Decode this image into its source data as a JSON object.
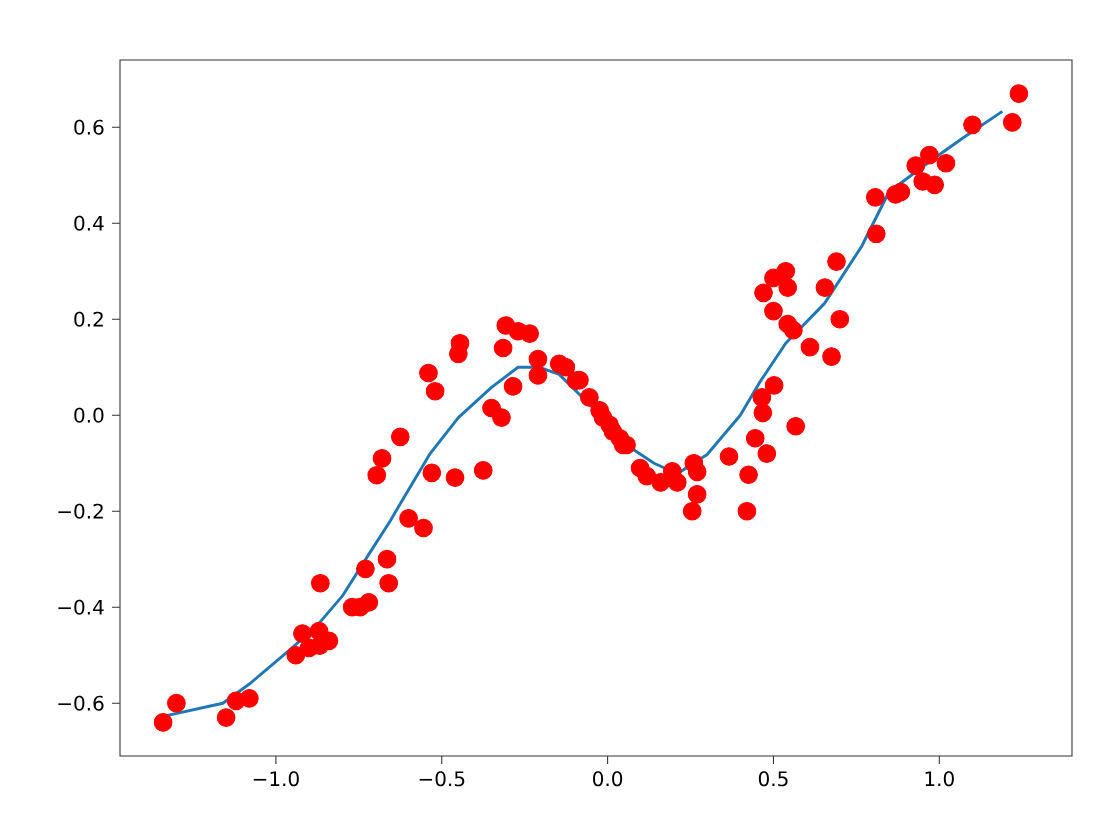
{
  "chart_data": {
    "type": "scatter",
    "marker": "circle",
    "xlim": [
      -1.47,
      1.4
    ],
    "ylim": [
      -0.71,
      0.74
    ],
    "xticks": [
      {
        "value": -1.0,
        "label": "−1.0"
      },
      {
        "value": -0.5,
        "label": "−0.5"
      },
      {
        "value": 0.0,
        "label": "0.0"
      },
      {
        "value": 0.5,
        "label": "0.5"
      },
      {
        "value": 1.0,
        "label": "1.0"
      }
    ],
    "yticks": [
      {
        "value": -0.6,
        "label": "−0.6"
      },
      {
        "value": -0.4,
        "label": "−0.4"
      },
      {
        "value": -0.2,
        "label": "−0.2"
      },
      {
        "value": 0.0,
        "label": "0.0"
      },
      {
        "value": 0.2,
        "label": "0.2"
      },
      {
        "value": 0.4,
        "label": "0.4"
      },
      {
        "value": 0.6,
        "label": "0.6"
      }
    ],
    "series": [
      {
        "color": "#ff0000",
        "x": [
          -1.34,
          -1.3,
          -1.15,
          -1.12,
          -1.08,
          -0.94,
          -0.92,
          -0.9,
          -0.87,
          -0.868,
          -0.84,
          -0.866,
          -0.77,
          -0.746,
          -0.72,
          -0.73,
          -0.665,
          -0.66,
          -0.6,
          -0.555,
          -0.696,
          -0.68,
          -0.625,
          -0.54,
          -0.52,
          -0.53,
          -0.46,
          -0.45,
          -0.445,
          -0.375,
          -0.35,
          -0.32,
          -0.315,
          -0.307,
          -0.27,
          -0.235,
          -0.285,
          -0.21,
          -0.21,
          -0.146,
          -0.126,
          -0.095,
          -0.085,
          -0.055,
          -0.024,
          -0.014,
          0.006,
          0.016,
          0.037,
          0.047,
          0.057,
          0.098,
          0.118,
          0.16,
          0.195,
          0.21,
          0.26,
          0.27,
          0.27,
          0.255,
          0.366,
          0.425,
          0.42,
          0.445,
          0.48,
          0.468,
          0.465,
          0.502,
          0.567,
          0.5,
          0.543,
          0.56,
          0.61,
          0.675,
          0.7,
          0.655,
          0.69,
          0.47,
          0.5,
          0.537,
          0.543,
          0.81,
          0.807,
          0.868,
          0.884,
          0.929,
          0.97,
          0.95,
          0.986,
          1.02,
          1.1,
          1.22,
          1.24
        ],
        "values": [
          -0.64,
          -0.6,
          -0.63,
          -0.595,
          -0.59,
          -0.5,
          -0.455,
          -0.485,
          -0.45,
          -0.48,
          -0.47,
          -0.35,
          -0.4,
          -0.4,
          -0.39,
          -0.32,
          -0.3,
          -0.35,
          -0.215,
          -0.235,
          -0.125,
          -0.09,
          -0.045,
          0.088,
          0.05,
          -0.12,
          -0.13,
          0.128,
          0.15,
          -0.115,
          0.015,
          -0.005,
          0.14,
          0.187,
          0.175,
          0.17,
          0.06,
          0.117,
          0.083,
          0.107,
          0.1,
          0.072,
          0.073,
          0.037,
          0.01,
          -0.005,
          -0.02,
          -0.034,
          -0.048,
          -0.062,
          -0.062,
          -0.11,
          -0.127,
          -0.14,
          -0.117,
          -0.14,
          -0.1,
          -0.118,
          -0.165,
          -0.2,
          -0.086,
          -0.124,
          -0.2,
          -0.048,
          -0.08,
          0.005,
          0.037,
          0.062,
          -0.023,
          0.217,
          0.19,
          0.177,
          0.142,
          0.122,
          0.2,
          0.266,
          0.32,
          0.255,
          0.286,
          0.3,
          0.266,
          0.378,
          0.454,
          0.46,
          0.465,
          0.52,
          0.542,
          0.487,
          0.48,
          0.525,
          0.605,
          0.61,
          0.67
        ]
      },
      {
        "type": "line",
        "marker": "none",
        "color": "#1f77b4",
        "x": [
          -1.357,
          -1.16,
          -1.08,
          -0.96,
          -0.878,
          -0.8,
          -0.72,
          -0.655,
          -0.634,
          -0.535,
          -0.45,
          -0.35,
          -0.27,
          -0.207,
          -0.146,
          -0.045,
          0.057,
          0.14,
          0.21,
          0.3,
          0.4,
          0.46,
          0.537,
          0.654,
          0.766,
          0.848,
          0.97,
          1.07,
          1.19
        ],
        "values": [
          -0.63,
          -0.6,
          -0.56,
          -0.49,
          -0.44,
          -0.377,
          -0.29,
          -0.22,
          -0.195,
          -0.08,
          -0.005,
          0.058,
          0.1,
          0.1,
          0.085,
          0.016,
          -0.062,
          -0.1,
          -0.122,
          -0.082,
          0.0,
          0.07,
          0.15,
          0.233,
          0.352,
          0.465,
          0.528,
          0.577,
          0.633
        ]
      }
    ]
  }
}
